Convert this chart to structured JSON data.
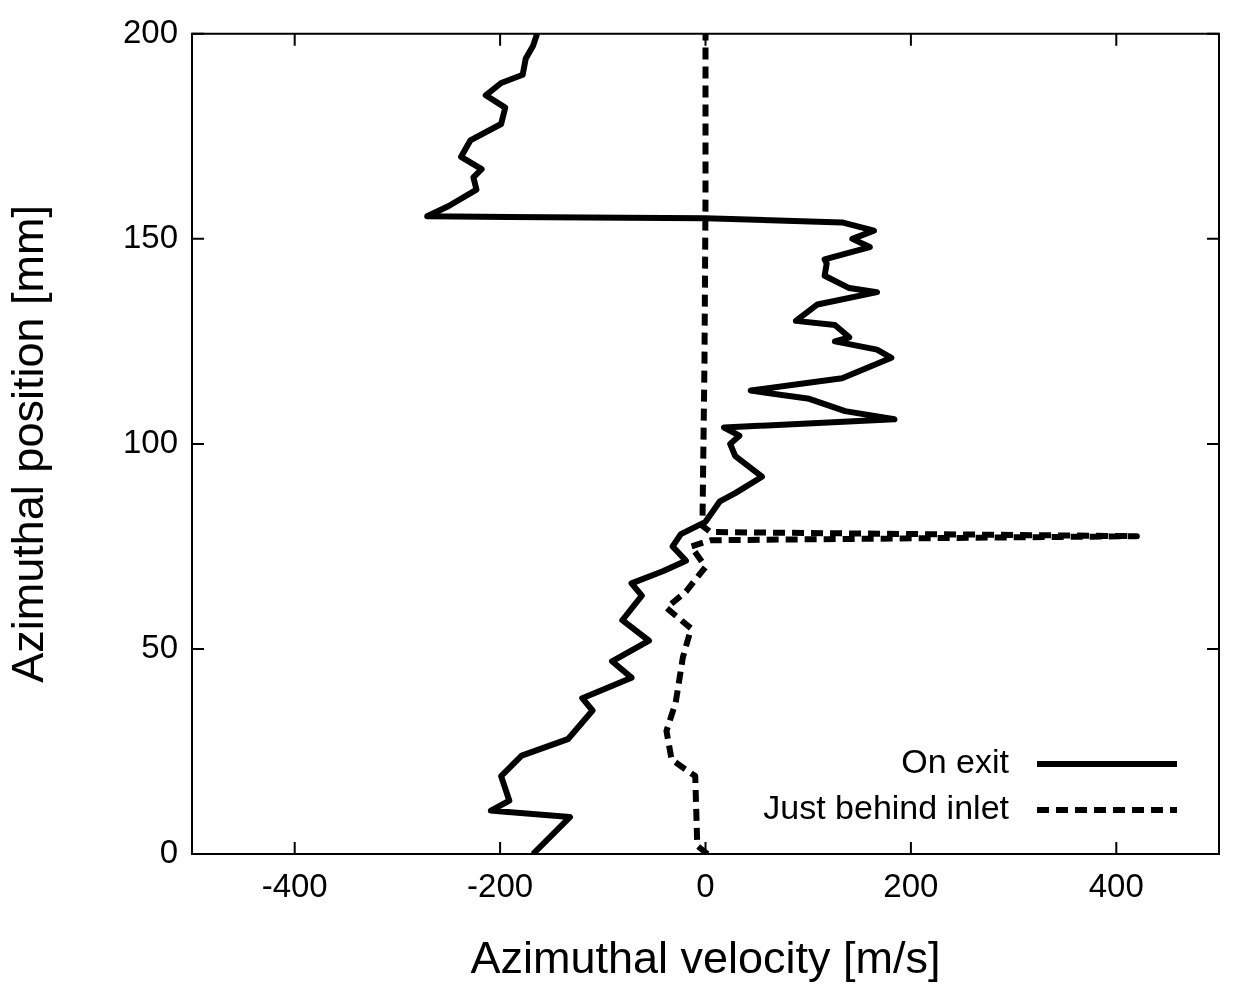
{
  "chart_data": {
    "type": "line",
    "xlabel": "Azimuthal velocity [m/s]",
    "ylabel": "Azimuthal position [mm]",
    "xlim": [
      -500,
      500
    ],
    "xticks": [
      {
        "value": -500,
        "label": null
      },
      -400,
      -200,
      0,
      200,
      400,
      {
        "value": 500,
        "label": null
      }
    ],
    "ylim": [
      0,
      200
    ],
    "yticks": [
      0,
      50,
      100,
      150,
      200
    ],
    "legend": "bottom right",
    "marker": "none",
    "series": [
      {
        "name": "On exit",
        "color": "#000000",
        "line_style": "solid",
        "x": [
          -168,
          -132,
          -209,
          -191,
          -199,
          -179,
          -134,
          -110,
          -120,
          -72,
          -91,
          -55,
          -81,
          -62,
          -72,
          -41,
          -19,
          -32,
          -24,
          0,
          14,
          29,
          55,
          29,
          24,
          33,
          18,
          184,
          136,
          101,
          44,
          133,
          181,
          167,
          126,
          140,
          126,
          88,
          109,
          167,
          140,
          116,
          118,
          116,
          160,
          143,
          164,
          133,
          0,
          -271,
          -250,
          -223,
          -226,
          -218,
          -238,
          -229,
          -199,
          -195,
          -214,
          -199,
          -178,
          -175,
          -168,
          -164
        ],
        "values": [
          0,
          9,
          10.6,
          13,
          19,
          24,
          28,
          35,
          38,
          43,
          47,
          52,
          57,
          63,
          66,
          69,
          71.5,
          75,
          78,
          81,
          86,
          88,
          92,
          97,
          100,
          102,
          104,
          106,
          108,
          111,
          113,
          116,
          121,
          123,
          125,
          126,
          129,
          130,
          134,
          137,
          138,
          141,
          144,
          145,
          148,
          150,
          152,
          154,
          155,
          155.5,
          158,
          162,
          165,
          167,
          170,
          174,
          178,
          182,
          185,
          188,
          190,
          194,
          197,
          200
        ]
      },
      {
        "name": "Just behind inlet",
        "color": "#000000",
        "line_style": "dashed",
        "x": [
          2,
          -8,
          -10,
          -33,
          -38,
          -29,
          -22,
          -14,
          -38,
          -19,
          0,
          -14,
          5,
          420,
          5,
          -3,
          -1,
          0,
          0
        ],
        "values": [
          0,
          2,
          19,
          23,
          30,
          37,
          48,
          55,
          60,
          64,
          70,
          75,
          76.5,
          77.5,
          78.5,
          80,
          120,
          160,
          200
        ]
      }
    ]
  }
}
